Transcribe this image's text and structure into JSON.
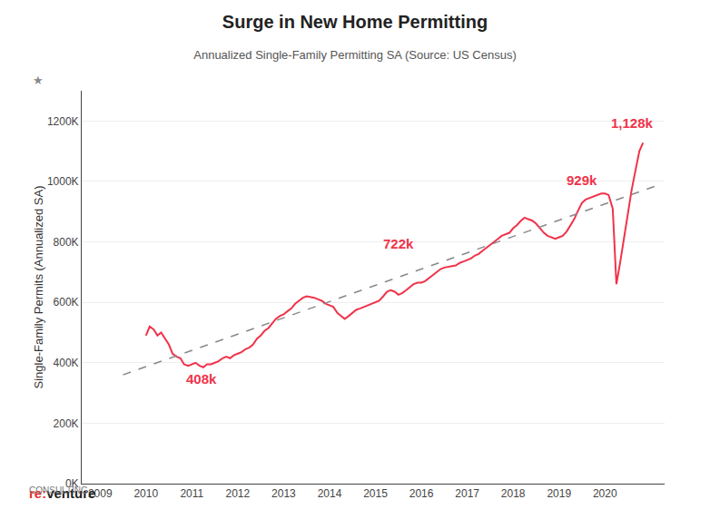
{
  "chart_data": {
    "type": "line",
    "title": "Surge in New Home Permitting",
    "subtitle": "Annualized Single-Family Permitting SA (Source: US Census)",
    "ylabel": "Single-Family Permits (Annualized SA)",
    "ylabel_mark": "★",
    "logo": [
      {
        "text": "re:",
        "color": "#E8302A"
      },
      {
        "text": "venture",
        "color": "#222222"
      }
    ],
    "logo_caption": "CONSULTING",
    "grid": true,
    "xlim": [
      2008.6,
      2021.3
    ],
    "xticks": [
      2009,
      2010,
      2011,
      2012,
      2013,
      2014,
      2015,
      2016,
      2017,
      2018,
      2019,
      2020
    ],
    "ylim": [
      0,
      1300000
    ],
    "yticks": [
      {
        "value": 0,
        "label": "0K"
      },
      {
        "value": 200000,
        "label": "200K"
      },
      {
        "value": 400000,
        "label": "400K"
      },
      {
        "value": 600000,
        "label": "600K"
      },
      {
        "value": 800000,
        "label": "800K"
      },
      {
        "value": 1000000,
        "label": "1000K"
      },
      {
        "value": 1200000,
        "label": "1200K"
      }
    ],
    "annotations": [
      {
        "text": "408k",
        "x": 2010.83,
        "y": 390000
      },
      {
        "text": "722k",
        "x": 2015.5,
        "y": 750000
      },
      {
        "text": "929k",
        "x": 2019.5,
        "y": 960000
      },
      {
        "text": "1,128k",
        "x": 2020.6,
        "y": 1150000
      }
    ],
    "series": [
      {
        "color": "#F0334A",
        "line_style": "solid",
        "x": [
          2010.0,
          2010.08,
          2010.17,
          2010.25,
          2010.33,
          2010.42,
          2010.5,
          2010.58,
          2010.67,
          2010.75,
          2010.83,
          2010.92,
          2011.0,
          2011.08,
          2011.17,
          2011.25,
          2011.33,
          2011.42,
          2011.5,
          2011.58,
          2011.67,
          2011.75,
          2011.83,
          2011.92,
          2012.0,
          2012.08,
          2012.17,
          2012.25,
          2012.33,
          2012.42,
          2012.5,
          2012.58,
          2012.67,
          2012.75,
          2012.83,
          2012.92,
          2013.0,
          2013.08,
          2013.17,
          2013.25,
          2013.33,
          2013.42,
          2013.5,
          2013.58,
          2013.67,
          2013.75,
          2013.83,
          2013.92,
          2014.0,
          2014.08,
          2014.17,
          2014.25,
          2014.33,
          2014.42,
          2014.5,
          2014.58,
          2014.67,
          2014.75,
          2014.83,
          2014.92,
          2015.0,
          2015.08,
          2015.17,
          2015.25,
          2015.33,
          2015.42,
          2015.5,
          2015.58,
          2015.67,
          2015.75,
          2015.83,
          2015.92,
          2016.0,
          2016.08,
          2016.17,
          2016.25,
          2016.33,
          2016.42,
          2016.5,
          2016.58,
          2016.67,
          2016.75,
          2016.83,
          2016.92,
          2017.0,
          2017.08,
          2017.17,
          2017.25,
          2017.33,
          2017.42,
          2017.5,
          2017.58,
          2017.67,
          2017.75,
          2017.83,
          2017.92,
          2018.0,
          2018.08,
          2018.17,
          2018.25,
          2018.33,
          2018.42,
          2018.5,
          2018.58,
          2018.67,
          2018.75,
          2018.83,
          2018.92,
          2019.0,
          2019.08,
          2019.17,
          2019.25,
          2019.33,
          2019.42,
          2019.5,
          2019.58,
          2019.67,
          2019.75,
          2019.83,
          2019.92,
          2020.0,
          2020.08,
          2020.17,
          2020.25,
          2020.33,
          2020.42,
          2020.5,
          2020.58,
          2020.67,
          2020.75,
          2020.83
        ],
        "values": [
          490000,
          520000,
          510000,
          490000,
          500000,
          480000,
          460000,
          430000,
          420000,
          415000,
          395000,
          390000,
          395000,
          400000,
          390000,
          385000,
          395000,
          395000,
          400000,
          405000,
          415000,
          420000,
          415000,
          425000,
          430000,
          435000,
          445000,
          450000,
          460000,
          480000,
          490000,
          505000,
          515000,
          530000,
          545000,
          555000,
          560000,
          570000,
          580000,
          595000,
          605000,
          615000,
          620000,
          618000,
          615000,
          610000,
          605000,
          595000,
          590000,
          585000,
          565000,
          555000,
          545000,
          555000,
          565000,
          575000,
          580000,
          585000,
          590000,
          595000,
          600000,
          605000,
          620000,
          635000,
          640000,
          635000,
          625000,
          630000,
          640000,
          650000,
          660000,
          665000,
          665000,
          670000,
          680000,
          690000,
          700000,
          710000,
          715000,
          718000,
          720000,
          722000,
          730000,
          735000,
          740000,
          745000,
          755000,
          760000,
          770000,
          780000,
          790000,
          800000,
          810000,
          820000,
          825000,
          830000,
          845000,
          855000,
          870000,
          880000,
          875000,
          870000,
          860000,
          845000,
          830000,
          820000,
          815000,
          810000,
          815000,
          820000,
          835000,
          855000,
          875000,
          905000,
          929000,
          940000,
          945000,
          950000,
          955000,
          960000,
          960000,
          955000,
          910000,
          660000,
          730000,
          820000,
          900000,
          970000,
          1040000,
          1100000,
          1128000
        ]
      },
      {
        "color": "#888888",
        "line_style": "dashed",
        "x": [
          2009.5,
          2021.2
        ],
        "values": [
          360000,
          990000
        ]
      }
    ]
  }
}
